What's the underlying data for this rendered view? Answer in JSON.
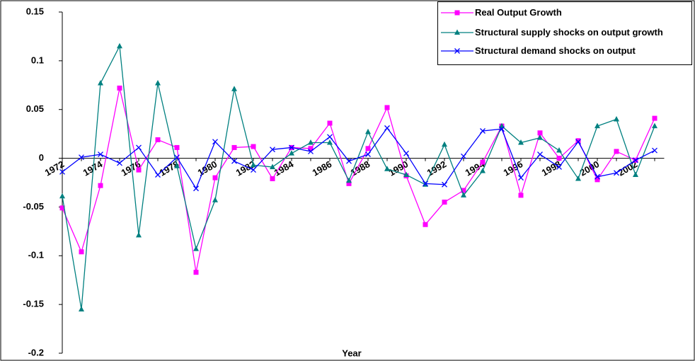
{
  "chart_data": {
    "type": "line",
    "x_label": "Year",
    "categories": [
      "1972",
      null,
      "1974",
      null,
      "1976",
      null,
      "1978",
      null,
      "1980",
      null,
      "1982",
      null,
      "1984",
      null,
      "1986",
      null,
      "1988",
      null,
      "1990",
      null,
      "1992",
      null,
      "1994",
      null,
      "1996",
      null,
      "1998",
      null,
      "2000",
      null,
      "2002",
      null
    ],
    "series": [
      {
        "name": "Real Output Growth",
        "color": "#ff00ff",
        "marker": "square",
        "values": [
          -0.051,
          -0.096,
          -0.028,
          0.072,
          -0.012,
          0.019,
          0.011,
          -0.117,
          -0.02,
          0.011,
          0.012,
          -0.021,
          0.011,
          0.01,
          0.036,
          -0.026,
          0.01,
          0.052,
          -0.018,
          -0.068,
          -0.045,
          -0.033,
          -0.004,
          0.033,
          -0.038,
          0.026,
          0.0,
          0.018,
          -0.022,
          0.007,
          -0.002,
          0.041
        ]
      },
      {
        "name": "Structural supply shocks on output growth",
        "color": "#008080",
        "marker": "triangle",
        "values": [
          -0.039,
          -0.155,
          0.077,
          0.115,
          -0.079,
          0.077,
          -0.008,
          -0.093,
          -0.043,
          0.071,
          -0.007,
          -0.009,
          0.005,
          0.016,
          0.016,
          -0.023,
          0.027,
          -0.011,
          -0.017,
          -0.027,
          0.014,
          -0.038,
          -0.013,
          0.033,
          0.016,
          0.021,
          0.008,
          -0.021,
          0.033,
          0.04,
          -0.017,
          0.033
        ]
      },
      {
        "name": "Structural demand shocks on output",
        "color": "#0000ff",
        "marker": "x",
        "values": [
          -0.014,
          0.001,
          0.004,
          -0.005,
          0.011,
          -0.017,
          0.001,
          -0.031,
          0.017,
          -0.003,
          -0.012,
          0.009,
          0.011,
          0.007,
          0.022,
          -0.003,
          0.004,
          0.031,
          0.005,
          -0.026,
          -0.027,
          0.002,
          0.028,
          0.03,
          -0.02,
          0.004,
          -0.009,
          0.017,
          -0.019,
          -0.015,
          -0.002,
          0.008
        ]
      }
    ],
    "ylim": [
      -0.2,
      0.15
    ],
    "yticks": [
      0.15,
      0.1,
      0.05,
      0,
      -0.05,
      -0.1,
      -0.15,
      -0.2
    ],
    "grid": false,
    "legend": "top-right"
  }
}
